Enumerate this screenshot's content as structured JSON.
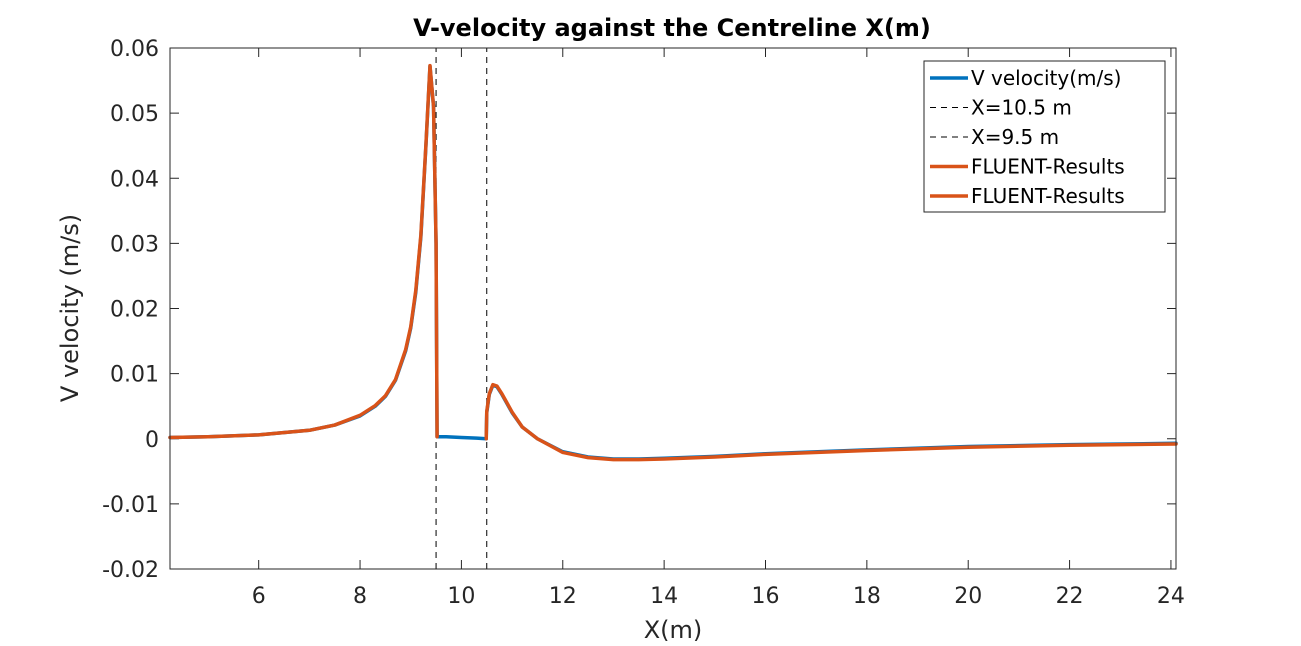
{
  "chart_data": {
    "type": "line",
    "title": "V-velocity against the Centreline X(m)",
    "xlabel": "X(m)",
    "ylabel": "V velocity (m/s)",
    "xlim": [
      4.25,
      24.1
    ],
    "ylim": [
      -0.02,
      0.06
    ],
    "xticks": [
      6,
      8,
      10,
      12,
      14,
      16,
      18,
      20,
      22,
      24
    ],
    "yticks": [
      -0.02,
      -0.01,
      0,
      0.01,
      0.02,
      0.03,
      0.04,
      0.05,
      0.06
    ],
    "xtick_labels": [
      "6",
      "8",
      "10",
      "12",
      "14",
      "16",
      "18",
      "20",
      "22",
      "24"
    ],
    "ytick_labels": [
      "-0.02",
      "-0.01",
      "0",
      "0.01",
      "0.02",
      "0.03",
      "0.04",
      "0.05",
      "0.06"
    ],
    "grid": false,
    "legend_position": "top-right",
    "vlines": [
      {
        "x": 9.5,
        "color": "#000000",
        "style": "dashed"
      },
      {
        "x": 10.5,
        "color": "#000000",
        "style": "dashed"
      }
    ],
    "series": [
      {
        "name": "V velocity(m/s)",
        "color": "#0072BD",
        "style": "solid",
        "x": [
          4.25,
          5,
          6,
          7,
          7.5,
          8,
          8.3,
          8.5,
          8.7,
          8.9,
          9.0,
          9.1,
          9.2,
          9.3,
          9.38,
          9.45,
          9.5,
          9.52,
          9.7,
          10.0,
          10.3,
          10.49,
          10.5,
          10.55,
          10.62,
          10.7,
          10.8,
          11.0,
          11.2,
          11.5,
          12.0,
          12.5,
          13.0,
          13.5,
          14,
          15,
          16,
          18,
          20,
          22,
          24.1
        ],
        "y": [
          0.0002,
          0.0003,
          0.0006,
          0.0013,
          0.0021,
          0.0035,
          0.005,
          0.0065,
          0.009,
          0.0135,
          0.017,
          0.0225,
          0.031,
          0.045,
          0.0572,
          0.051,
          0.03,
          0.0003,
          0.0003,
          0.0002,
          0.0001,
          0.0,
          0.004,
          0.0068,
          0.0082,
          0.008,
          0.0068,
          0.004,
          0.0018,
          0.0,
          -0.002,
          -0.0028,
          -0.0031,
          -0.0031,
          -0.003,
          -0.0027,
          -0.0023,
          -0.0017,
          -0.0012,
          -0.0009,
          -0.0007
        ]
      },
      {
        "name": "X=10.5 m",
        "color": "#000000",
        "style": "dashed",
        "x": [
          10.5,
          10.5
        ],
        "y": [
          -0.02,
          0.06
        ]
      },
      {
        "name": "X=9.5 m",
        "color": "#000000",
        "style": "dashed",
        "x": [
          9.5,
          9.5
        ],
        "y": [
          -0.02,
          0.06
        ]
      },
      {
        "name": "FLUENT-Results",
        "color": "#D95319",
        "style": "solid",
        "x": [
          4.25,
          5,
          6,
          7,
          7.5,
          8,
          8.3,
          8.5,
          8.7,
          8.9,
          9.0,
          9.1,
          9.2,
          9.3,
          9.38,
          9.45,
          9.5,
          9.52
        ],
        "y": [
          0.0002,
          0.0003,
          0.0006,
          0.0013,
          0.0021,
          0.0036,
          0.0051,
          0.0066,
          0.0091,
          0.0137,
          0.0172,
          0.0228,
          0.0313,
          0.0452,
          0.0573,
          0.051,
          0.03,
          0.0003
        ]
      },
      {
        "name": "FLUENT-Results",
        "color": "#D95319",
        "style": "solid",
        "x": [
          10.49,
          10.5,
          10.55,
          10.62,
          10.7,
          10.8,
          11.0,
          11.2,
          11.5,
          12.0,
          12.5,
          13.0,
          13.5,
          14,
          15,
          16,
          18,
          20,
          22,
          24.1
        ],
        "y": [
          0.0,
          0.0042,
          0.0069,
          0.0083,
          0.0081,
          0.0069,
          0.0041,
          0.0018,
          0.0,
          -0.0021,
          -0.0029,
          -0.0032,
          -0.0032,
          -0.0031,
          -0.0028,
          -0.0024,
          -0.0018,
          -0.0013,
          -0.001,
          -0.0008
        ]
      }
    ]
  }
}
